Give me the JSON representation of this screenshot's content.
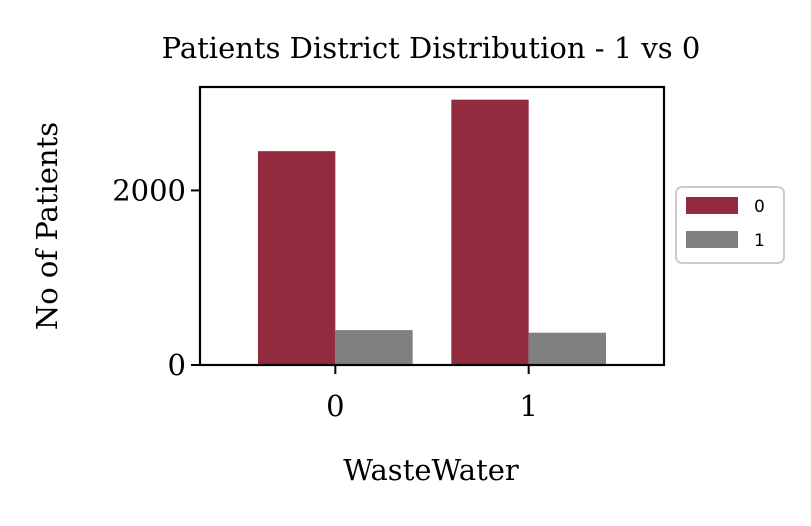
{
  "chart_data": {
    "type": "bar",
    "title": "Patients District Distribution - 1 vs 0",
    "xlabel": "WasteWater",
    "ylabel": "No of Patients",
    "categories": [
      "0",
      "1"
    ],
    "series": [
      {
        "name": "0",
        "values": [
          2450,
          3040
        ],
        "color": "#922b3e"
      },
      {
        "name": "1",
        "values": [
          400,
          370
        ],
        "color": "#808080"
      }
    ],
    "ylim": [
      0,
      3185
    ],
    "yticks": [
      0,
      2000
    ],
    "ytick_labels": [
      "0",
      "2000"
    ],
    "legend_position": "right",
    "grid": false
  }
}
